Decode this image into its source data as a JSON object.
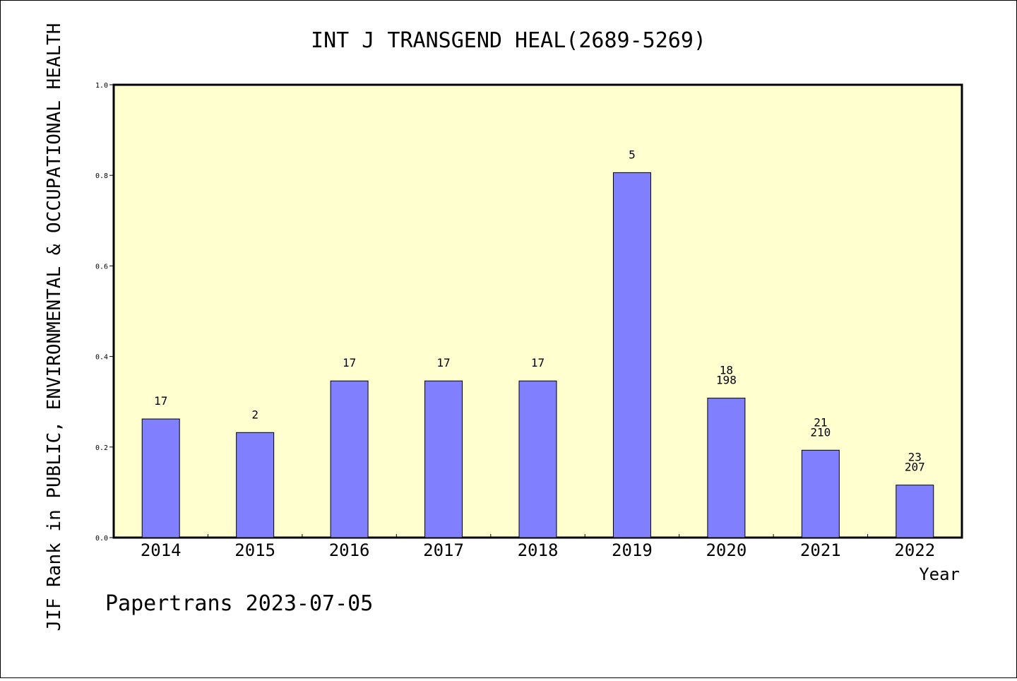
{
  "chart_data": {
    "type": "bar",
    "title": "INT J TRANSGEND HEAL(2689-5269)",
    "ylabel": "JIF Rank in PUBLIC, ENVIRONMENTAL & OCCUPATIONAL HEALTH",
    "xlabel": "Year",
    "footer": "Papertrans 2023-07-05",
    "ylim": [
      0,
      1.0
    ],
    "yticks": [
      "0.0",
      "0.2",
      "0.4",
      "0.6",
      "0.8",
      "1.0"
    ],
    "grid": false,
    "categories": [
      "2014",
      "2015",
      "2016",
      "2017",
      "2018",
      "2019",
      "2020",
      "2021",
      "2022"
    ],
    "values": [
      0.262,
      0.232,
      0.346,
      0.346,
      0.346,
      0.806,
      0.308,
      0.193,
      0.116
    ],
    "labels": [
      [
        "17"
      ],
      [
        "2"
      ],
      [
        "17"
      ],
      [
        "17"
      ],
      [
        "17"
      ],
      [
        "5"
      ],
      [
        "18",
        "198"
      ],
      [
        "21",
        "210"
      ],
      [
        "23",
        "207"
      ]
    ],
    "colors": {
      "plot_background": "#ffffd0",
      "bar_fill": "#8080ff",
      "bar_stroke": "#000000"
    }
  }
}
